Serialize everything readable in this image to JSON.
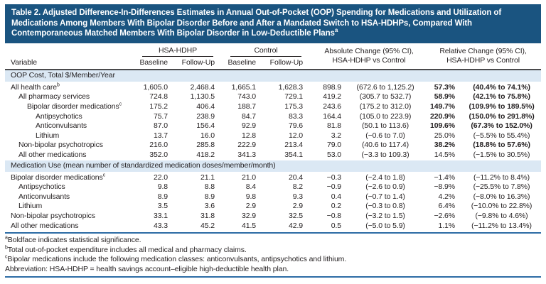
{
  "title": {
    "text": "Table 2. Adjusted Difference-In-Differences Estimates in Annual Out-of-Pocket (OOP) Spending for Medications and Utilization of Medications Among Members With Bipolar Disorder Before and After a Mandated Switch to HSA-HDHPs, Compared With Contemporaneous Matched Members With Bipolar Disorder in Low-Deductible Plans",
    "sup": "a"
  },
  "header": {
    "variable": "Variable",
    "groups": [
      {
        "label": "HSA-HDHP"
      },
      {
        "label": "Control"
      }
    ],
    "subcols": [
      "Baseline",
      "Follow-Up",
      "Baseline",
      "Follow-Up"
    ],
    "abs_change": {
      "line1": "Absolute Change (95% CI),",
      "line2": "HSA-HDHP vs Control"
    },
    "rel_change": {
      "line1": "Relative Change (95% CI),",
      "line2": "HSA-HDHP vs Control"
    }
  },
  "sections": [
    {
      "title": "OOP Cost, Total $/Member/Year",
      "rows": [
        {
          "label": "All health care",
          "sup": "b",
          "indent": 0,
          "bold": true,
          "cells": [
            "1,605.0",
            "2,468.4",
            "1,665.1",
            "1,628.3",
            "898.9",
            "(672.6 to 1,125.2)",
            "57.3%",
            "(40.4% to 74.1%)"
          ]
        },
        {
          "label": "All pharmacy services",
          "sup": "",
          "indent": 1,
          "bold": true,
          "cells": [
            "724.8",
            "1,130.5",
            "743.0",
            "729.1",
            "419.2",
            "(305.7 to 532.7)",
            "58.9%",
            "(42.1% to 75.8%)"
          ]
        },
        {
          "label": "Bipolar disorder medications",
          "sup": "c",
          "indent": 2,
          "bold": true,
          "cells": [
            "175.2",
            "406.4",
            "188.7",
            "175.3",
            "243.6",
            "(175.2 to 312.0)",
            "149.7%",
            "(109.9% to 189.5%)"
          ]
        },
        {
          "label": "Antipsychotics",
          "sup": "",
          "indent": 3,
          "bold": true,
          "cells": [
            "75.7",
            "238.9",
            "84.7",
            "83.3",
            "164.4",
            "(105.0 to 223.9)",
            "220.9%",
            "(150.0% to 291.8%)"
          ]
        },
        {
          "label": "Anticonvulsants",
          "sup": "",
          "indent": 3,
          "bold": true,
          "cells": [
            "87.0",
            "156.4",
            "92.9",
            "79.6",
            "81.8",
            "(50.1 to 113.6)",
            "109.6%",
            "(67.3% to 152.0%)"
          ]
        },
        {
          "label": "Lithium",
          "sup": "",
          "indent": 3,
          "bold": false,
          "cells": [
            "13.7",
            "16.0",
            "12.8",
            "12.0",
            "3.2",
            "(−0.6 to 7.0)",
            "25.0%",
            "(−5.5% to 55.4%)"
          ]
        },
        {
          "label": "Non-bipolar psychotropics",
          "sup": "",
          "indent": 1,
          "bold": true,
          "cells": [
            "216.0",
            "285.8",
            "222.9",
            "213.4",
            "79.0",
            "(40.6 to 117.4)",
            "38.2%",
            "(18.8% to 57.6%)"
          ]
        },
        {
          "label": "All other medications",
          "sup": "",
          "indent": 1,
          "bold": false,
          "cells": [
            "352.0",
            "418.2",
            "341.3",
            "354.1",
            "53.0",
            "(−3.3 to 109.3)",
            "14.5%",
            "(−1.5% to 30.5%)"
          ]
        }
      ]
    },
    {
      "title": "Medication Use (mean number of standardized medication doses/member/month)",
      "rows": [
        {
          "label": "Bipolar disorder medications",
          "sup": "c",
          "indent": 0,
          "bold": false,
          "cells": [
            "22.0",
            "21.1",
            "21.0",
            "20.4",
            "−0.3",
            "(−2.4 to 1.8)",
            "−1.4%",
            "(−11.2% to 8.4%)"
          ]
        },
        {
          "label": "Antipsychotics",
          "sup": "",
          "indent": 1,
          "bold": false,
          "cells": [
            "9.8",
            "8.8",
            "8.4",
            "8.2",
            "−0.9",
            "(−2.6 to 0.9)",
            "−8.9%",
            "(−25.5% to 7.8%)"
          ]
        },
        {
          "label": "Anticonvulsants",
          "sup": "",
          "indent": 1,
          "bold": false,
          "cells": [
            "8.9",
            "8.9",
            "9.8",
            "9.3",
            "0.4",
            "(−0.7 to 1.4)",
            "4.2%",
            "(−8.0% to 16.3%)"
          ]
        },
        {
          "label": "Lithium",
          "sup": "",
          "indent": 1,
          "bold": false,
          "cells": [
            "3.5",
            "3.6",
            "2.9",
            "2.9",
            "0.2",
            "(−0.3 to 0.8)",
            "6.4%",
            "(−10.0% to 22.8%)"
          ]
        },
        {
          "label": "Non-bipolar psychotropics",
          "sup": "",
          "indent": 0,
          "bold": false,
          "cells": [
            "33.1",
            "31.8",
            "32.9",
            "32.5",
            "−0.8",
            "(−3.2 to 1.5)",
            "−2.6%",
            "(−9.8% to 4.6%)"
          ]
        },
        {
          "label": "All other medications",
          "sup": "",
          "indent": 0,
          "bold": false,
          "cells": [
            "43.3",
            "45.2",
            "41.5",
            "42.9",
            "0.5",
            "(−5.0 to 5.9)",
            "1.1%",
            "(−11.2% to 13.4%)"
          ]
        }
      ]
    }
  ],
  "footnotes": [
    {
      "sup": "a",
      "text": "Boldface indicates statistical significance."
    },
    {
      "sup": "b",
      "text": "Total out-of-pocket expenditure includes all medical and pharmacy claims."
    },
    {
      "sup": "c",
      "text": "Bipolar medications include the following medication classes: anticonvulsants, antipsychotics and lithium."
    },
    {
      "sup": "",
      "text": "Abbreviation: HSA-HDHP = health savings account–eligible high-deductible health plan."
    }
  ],
  "colors": {
    "title_bar_bg": "#1a5480",
    "title_text": "#ffffff",
    "section_band_bg": "#dbe8f4",
    "header_rule": "#4a4a4c",
    "group_rule": "#231f20",
    "blue_rule": "#2d6ca5",
    "body_text": "#231f20"
  }
}
